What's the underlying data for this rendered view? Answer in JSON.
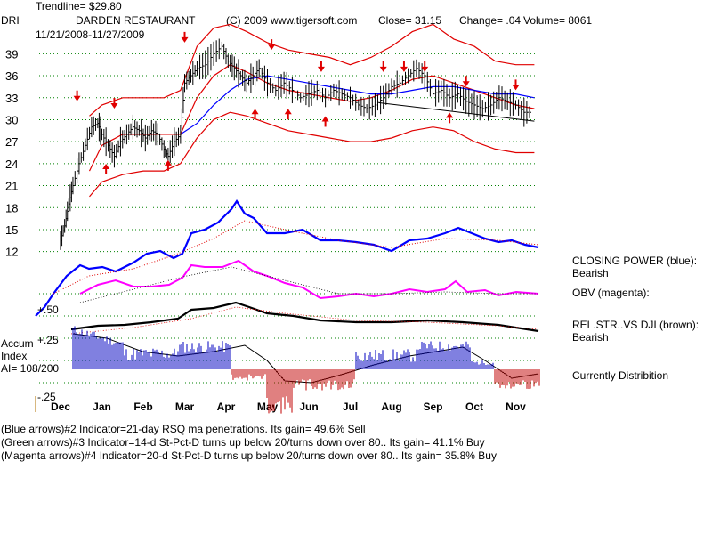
{
  "header": {
    "trendline": "Trendline= $29.80",
    "ticker": "DRI",
    "company": "DARDEN RESTAURANT",
    "copyright": "(C) 2009 www.tigersoft.com",
    "close": "Close=  31.15",
    "change": "Change= .04",
    "volume": "Volume= 8061",
    "date_range": "11/21/2008-11/27/2009"
  },
  "left_labels": {
    "accum": "Accum",
    "index": "Index",
    "ai": "AI= 108/200",
    "plus50": "+.50",
    "plus25": "+.25",
    "minus25": "-.25"
  },
  "right_labels": {
    "closing_power": "CLOSING POWER (blue):",
    "closing_power_status": "Bearish",
    "obv": "OBV (magenta):",
    "rel_str": "REL.STR..VS DJI (brown):",
    "rel_str_status": "Bearish",
    "distribution": "Currently Distribition"
  },
  "footer": {
    "line1": "(Blue arrows)#2 Indicator=21-day RSQ ma penetrations.  Its gain= 49.6% Sell",
    "line2": "(Green arrows)#3 Indicator=14-d St-Pct-D turns up below 20/turns down over 80.. Its gain= 41.1% Buy",
    "line3": "(Magenta arrows)#4 Indicator=20-d St-Pct-D turns up below 20/turns down over 80.. Its gain= 35.8% Buy"
  },
  "colors": {
    "price": "#000000",
    "upper_band": "#e00000",
    "ma_blue": "#0000ff",
    "closing_power": "#0000ff",
    "obv": "#ff00ff",
    "rel_str": "#000000",
    "accum_pos": "#0000c0",
    "accum_neg": "#c00000",
    "arrow": "#e00000",
    "grid": "#008000"
  },
  "chart_data": {
    "type": "line",
    "x_labels": [
      "Dec",
      "Jan",
      "Feb",
      "Mar",
      "Apr",
      "May",
      "Jun",
      "Jul",
      "Aug",
      "Sep",
      "Oct",
      "Nov"
    ],
    "y_ticks": [
      12,
      15,
      18,
      21,
      24,
      27,
      30,
      33,
      36,
      39
    ],
    "ylim": [
      10.5,
      40.5
    ],
    "grid": true,
    "price_series": {
      "name": "DRI",
      "x": [
        0,
        0.1,
        0.2,
        0.3,
        0.45,
        0.6,
        0.75,
        0.9,
        1.0,
        1.15,
        1.3,
        1.45,
        1.6,
        1.75,
        1.9,
        2.05,
        2.2,
        2.35,
        2.5,
        2.6,
        2.75,
        2.9,
        3.0,
        3.15,
        3.3,
        3.5,
        3.7,
        3.9,
        4.05,
        4.2,
        4.35,
        4.5,
        4.65,
        4.8,
        5.0,
        5.2,
        5.4,
        5.6,
        5.8,
        6.0,
        6.2,
        6.4,
        6.6,
        6.8,
        7.0,
        7.2,
        7.4,
        7.6,
        7.8,
        8.0,
        8.2,
        8.4,
        8.6,
        8.8,
        9.0,
        9.2,
        9.4,
        9.6,
        9.8,
        10.0,
        10.2,
        10.4,
        10.6,
        10.8,
        11.0,
        11.2,
        11.4
      ],
      "y": [
        13.5,
        15.5,
        18.5,
        21,
        24,
        26.5,
        29,
        29.5,
        28,
        26.5,
        25,
        27,
        28,
        29,
        28.5,
        27.5,
        28.5,
        28,
        26,
        25,
        27,
        28,
        35,
        36,
        37,
        37.5,
        39,
        40,
        38,
        37,
        36,
        35,
        36,
        37,
        35,
        34,
        35,
        34,
        33,
        33.5,
        34,
        33,
        34,
        33.5,
        33,
        32,
        31.5,
        32,
        33,
        34.5,
        35,
        36,
        37,
        36,
        33.5,
        34,
        33,
        33.5,
        32.5,
        32,
        31.5,
        32,
        33,
        32.5,
        32,
        31,
        31
      ]
    },
    "upper_band": {
      "x": [
        0.7,
        1.0,
        1.5,
        2.0,
        2.5,
        2.9,
        3.3,
        3.7,
        4.1,
        4.5,
        5.0,
        5.5,
        6.0,
        6.5,
        7.0,
        7.5,
        8.0,
        8.5,
        9.0,
        9.5,
        10.0,
        10.5,
        11.0,
        11.45
      ],
      "y": [
        30.5,
        32,
        33,
        33,
        33,
        34,
        40,
        42.5,
        43,
        42,
        40.5,
        39.5,
        39,
        38.5,
        37.5,
        38.5,
        40,
        42,
        43,
        41,
        40,
        38,
        37.5,
        37.5
      ]
    },
    "lower_band": {
      "x": [
        0.7,
        1.0,
        1.5,
        2.0,
        2.5,
        2.9,
        3.3,
        3.7,
        4.1,
        4.5,
        5.0,
        5.5,
        6.0,
        6.5,
        7.0,
        7.5,
        8.0,
        8.5,
        9.0,
        9.5,
        10.0,
        10.5,
        11.0,
        11.45
      ],
      "y": [
        19.5,
        21.5,
        22.5,
        23,
        23,
        24,
        27.5,
        30,
        31,
        30.5,
        29.5,
        28.5,
        28,
        27.5,
        27,
        27,
        27.5,
        28.5,
        29,
        28.5,
        27,
        26,
        25.5,
        25.5
      ]
    },
    "red_ma": {
      "x": [
        0.7,
        1.0,
        1.5,
        2.0,
        2.5,
        2.9,
        3.3,
        3.7,
        4.1,
        4.5,
        5.0,
        5.5,
        6.0,
        6.5,
        7.0,
        7.5,
        8.0,
        8.5,
        9.0,
        9.5,
        10.0,
        10.5,
        11.0,
        11.45
      ],
      "y": [
        23,
        26.5,
        28,
        28,
        28,
        28,
        33,
        36,
        37.5,
        36.5,
        35,
        34,
        33.5,
        33,
        32.5,
        33,
        34,
        35.5,
        36,
        35,
        34,
        33,
        32,
        31.5
      ]
    },
    "blue_ma": {
      "x": [
        2.9,
        3.3,
        3.7,
        4.1,
        4.5,
        5.0,
        5.5,
        6.0,
        6.5,
        7.0,
        7.5,
        8.0,
        8.5,
        9.0,
        9.5,
        10.0,
        10.5,
        11.0,
        11.45
      ],
      "y": [
        28,
        29.5,
        32,
        34,
        35.5,
        36,
        35.5,
        35,
        34.5,
        34,
        33.5,
        33.5,
        34,
        34.5,
        34.5,
        34,
        33.5,
        33.5,
        33
      ]
    },
    "trendline": {
      "x": [
        7.7,
        11.45
      ],
      "y": [
        32.3,
        29.8
      ]
    },
    "down_arrows": [
      [
        0.4,
        33
      ],
      [
        1.3,
        32
      ],
      [
        3.0,
        41
      ],
      [
        5.1,
        40
      ],
      [
        6.3,
        37
      ],
      [
        7.8,
        37
      ],
      [
        8.3,
        37
      ],
      [
        8.8,
        37
      ],
      [
        9.8,
        35
      ],
      [
        11.0,
        34.5
      ]
    ],
    "up_arrows": [
      [
        1.1,
        23.5
      ],
      [
        2.6,
        24
      ],
      [
        4.7,
        31
      ],
      [
        5.5,
        31
      ],
      [
        6.4,
        30
      ],
      [
        9.4,
        30.5
      ]
    ],
    "closing_power": {
      "name": "CLOSING POWER (blue)",
      "status": "Bearish"
    },
    "obv": {
      "name": "OBV (magenta)"
    },
    "rel_str": {
      "name": "REL.STR..VS DJI (brown)",
      "status": "Bearish"
    },
    "accum_index": {
      "value": "AI= 108/200",
      "levels": [
        "+.50",
        "+.25",
        "-.25"
      ]
    }
  }
}
